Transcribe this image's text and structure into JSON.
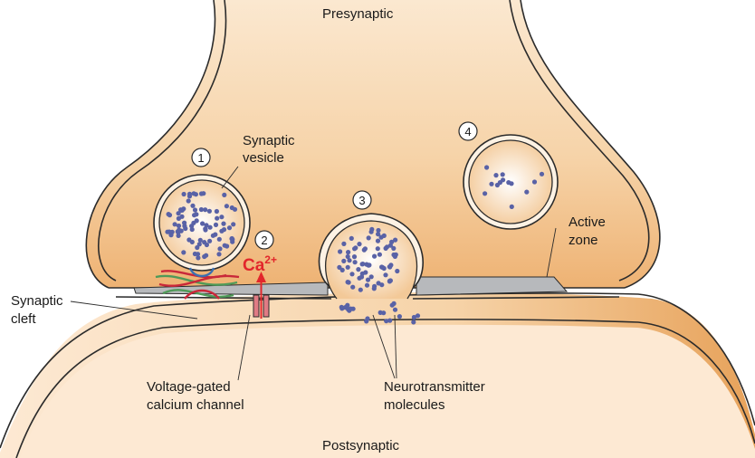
{
  "labels": {
    "presynaptic": "Presynaptic",
    "postsynaptic": "Postsynaptic",
    "synaptic_vesicle": [
      "Synaptic",
      "vesicle"
    ],
    "active_zone": [
      "Active",
      "zone"
    ],
    "synaptic_cleft": [
      "Synaptic",
      "cleft"
    ],
    "calcium_channel": [
      "Voltage-gated",
      "calcium channel"
    ],
    "neurotransmitter": [
      "Neurotransmitter",
      "molecules"
    ],
    "ion": "Ca",
    "ion_charge": "2+"
  },
  "steps": [
    "1",
    "2",
    "3",
    "4"
  ],
  "colors": {
    "terminal_fill": "#f2c592",
    "terminal_light": "#fbe6cc",
    "membrane_outline": "#2b2b2b",
    "active_zone": "#b7b9bc",
    "vesicle_fill": "#fdf2e4",
    "neurotransmitter": "#5962a6",
    "calcium": "#e2262b",
    "snare_red": "#c9283a",
    "snare_green": "#4f9a58",
    "snare_blue": "#3a6fb0",
    "postsynaptic_shade": "#e7a25a"
  }
}
